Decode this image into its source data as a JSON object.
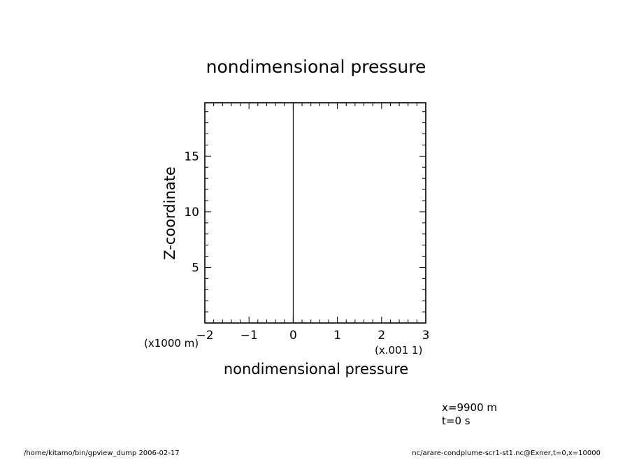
{
  "chart_data": {
    "type": "line",
    "title": "nondimensional pressure",
    "xlabel": "nondimensional pressure",
    "ylabel": "Z-coordinate",
    "x_unit_label": "(x.001 1)",
    "y_unit_label": "(x1000 m)",
    "xlim": [
      -2,
      3
    ],
    "ylim": [
      0,
      19.8
    ],
    "x_ticks": [
      -2,
      -1,
      0,
      1,
      2,
      3
    ],
    "y_ticks": [
      5,
      10,
      15
    ],
    "grid": false,
    "series": [
      {
        "x": [
          0,
          0
        ],
        "y": [
          0,
          19.8
        ]
      }
    ]
  },
  "annotations": {
    "position": "x=9900 m",
    "time": "t=0 s"
  },
  "footer": {
    "left": "/home/kitamo/bin/gpview_dump  2006-02-17",
    "right": "nc/arare-condplume-scr1-st1.nc@Exner,t=0,x=10000"
  }
}
